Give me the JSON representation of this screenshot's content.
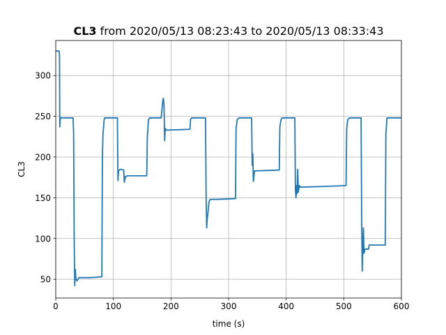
{
  "chart_data": {
    "type": "line",
    "title_bold": "CL3",
    "title_rest": " from 2020/05/13 08:23:43 to 2020/05/13 08:33:43",
    "xlabel": "time (s)",
    "ylabel": "CL3",
    "xlim": [
      0,
      600
    ],
    "ylim": [
      27,
      343
    ],
    "xticks": [
      0,
      100,
      200,
      300,
      400,
      500,
      600
    ],
    "yticks": [
      50,
      100,
      150,
      200,
      250,
      300
    ],
    "grid": true,
    "color": "#1f77b4",
    "series": [
      {
        "points": [
          [
            0,
            330
          ],
          [
            6,
            330
          ],
          [
            6.5,
            325
          ],
          [
            7,
            237
          ],
          [
            8,
            248
          ],
          [
            30,
            248
          ],
          [
            31,
            230
          ],
          [
            32,
            100
          ],
          [
            33,
            42
          ],
          [
            34,
            62
          ],
          [
            35,
            50
          ],
          [
            37,
            48
          ],
          [
            40,
            52
          ],
          [
            60,
            52
          ],
          [
            80,
            53
          ],
          [
            81,
            200
          ],
          [
            82,
            228
          ],
          [
            84,
            246
          ],
          [
            85,
            248
          ],
          [
            107,
            248
          ],
          [
            108,
            171
          ],
          [
            109,
            183
          ],
          [
            112,
            185
          ],
          [
            118,
            184
          ],
          [
            119,
            169
          ],
          [
            121,
            176
          ],
          [
            125,
            177
          ],
          [
            158,
            177
          ],
          [
            159,
            225
          ],
          [
            161,
            246
          ],
          [
            163,
            248
          ],
          [
            183,
            248
          ],
          [
            184,
            256
          ],
          [
            186,
            270
          ],
          [
            187,
            272
          ],
          [
            188,
            262
          ],
          [
            189,
            220
          ],
          [
            190,
            235
          ],
          [
            192,
            233
          ],
          [
            233,
            234
          ],
          [
            234,
            246
          ],
          [
            236,
            248
          ],
          [
            260,
            248
          ],
          [
            261,
            150
          ],
          [
            262,
            113
          ],
          [
            263,
            125
          ],
          [
            264,
            130
          ],
          [
            266,
            145
          ],
          [
            268,
            148
          ],
          [
            280,
            148
          ],
          [
            312,
            149
          ],
          [
            313,
            235
          ],
          [
            315,
            246
          ],
          [
            318,
            248
          ],
          [
            340,
            248
          ],
          [
            341,
            190
          ],
          [
            342,
            204
          ],
          [
            343,
            170
          ],
          [
            344,
            176
          ],
          [
            345,
            183
          ],
          [
            388,
            184
          ],
          [
            389,
            237
          ],
          [
            391,
            246
          ],
          [
            393,
            248
          ],
          [
            415,
            248
          ],
          [
            416,
            160
          ],
          [
            417,
            150
          ],
          [
            418,
            165
          ],
          [
            419,
            155
          ],
          [
            420,
            185
          ],
          [
            421,
            157
          ],
          [
            423,
            165
          ],
          [
            425,
            163
          ],
          [
            470,
            164
          ],
          [
            504,
            165
          ],
          [
            505,
            235
          ],
          [
            507,
            246
          ],
          [
            510,
            248
          ],
          [
            530,
            248
          ],
          [
            531,
            130
          ],
          [
            532,
            60
          ],
          [
            533,
            85
          ],
          [
            534,
            113
          ],
          [
            535,
            82
          ],
          [
            537,
            87
          ],
          [
            543,
            87
          ],
          [
            544,
            92
          ],
          [
            555,
            92
          ],
          [
            572,
            92
          ],
          [
            573,
            228
          ],
          [
            575,
            248
          ],
          [
            600,
            248
          ]
        ]
      }
    ]
  }
}
